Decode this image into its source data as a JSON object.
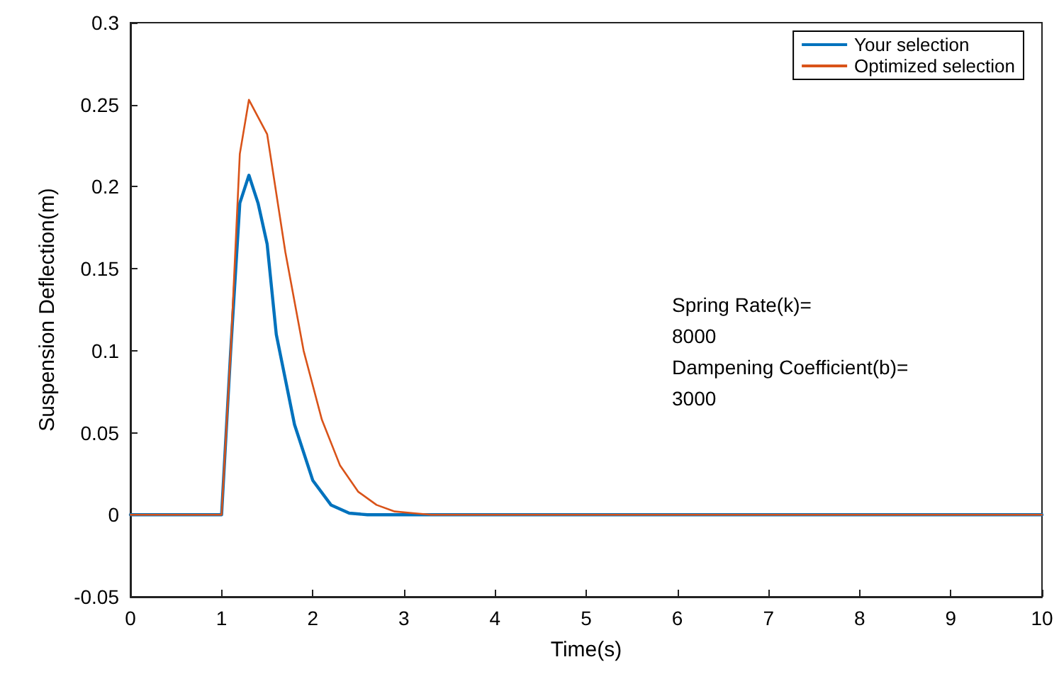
{
  "chart_data": {
    "type": "line",
    "xlabel": "Time(s)",
    "ylabel": "Suspension Deflection(m)",
    "xlim": [
      0,
      10
    ],
    "xticks": [
      0,
      1,
      2,
      3,
      4,
      5,
      6,
      7,
      8,
      9,
      10
    ],
    "ylim": [
      -0.05,
      0.3
    ],
    "yticks": [
      -0.05,
      0,
      0.05,
      0.1,
      0.15,
      0.2,
      0.25,
      0.3
    ],
    "series": [
      {
        "name": "Your selection",
        "color": "#0072bd",
        "x": [
          0,
          1,
          1.1,
          1.2,
          1.3,
          1.4,
          1.5,
          1.6,
          1.8,
          2.0,
          2.2,
          2.4,
          2.6,
          10
        ],
        "values": [
          0,
          0,
          0.1,
          0.19,
          0.207,
          0.19,
          0.165,
          0.11,
          0.055,
          0.021,
          0.006,
          0.001,
          0,
          0
        ]
      },
      {
        "name": "Optimized selection",
        "color": "#d95319",
        "x": [
          0,
          1,
          1.1,
          1.2,
          1.3,
          1.5,
          1.7,
          1.9,
          2.1,
          2.3,
          2.5,
          2.7,
          2.9,
          3.1,
          3.3,
          10
        ],
        "values": [
          0,
          0,
          0.1,
          0.22,
          0.253,
          0.232,
          0.16,
          0.1,
          0.058,
          0.03,
          0.014,
          0.006,
          0.002,
          0.001,
          0,
          0
        ]
      }
    ],
    "annotations": [
      "Spring Rate(k)=",
      "8000",
      "Dampening Coefficient(b)=",
      "3000"
    ],
    "legend": "top right",
    "grid": false,
    "marker": "none",
    "line_style": "solid"
  }
}
